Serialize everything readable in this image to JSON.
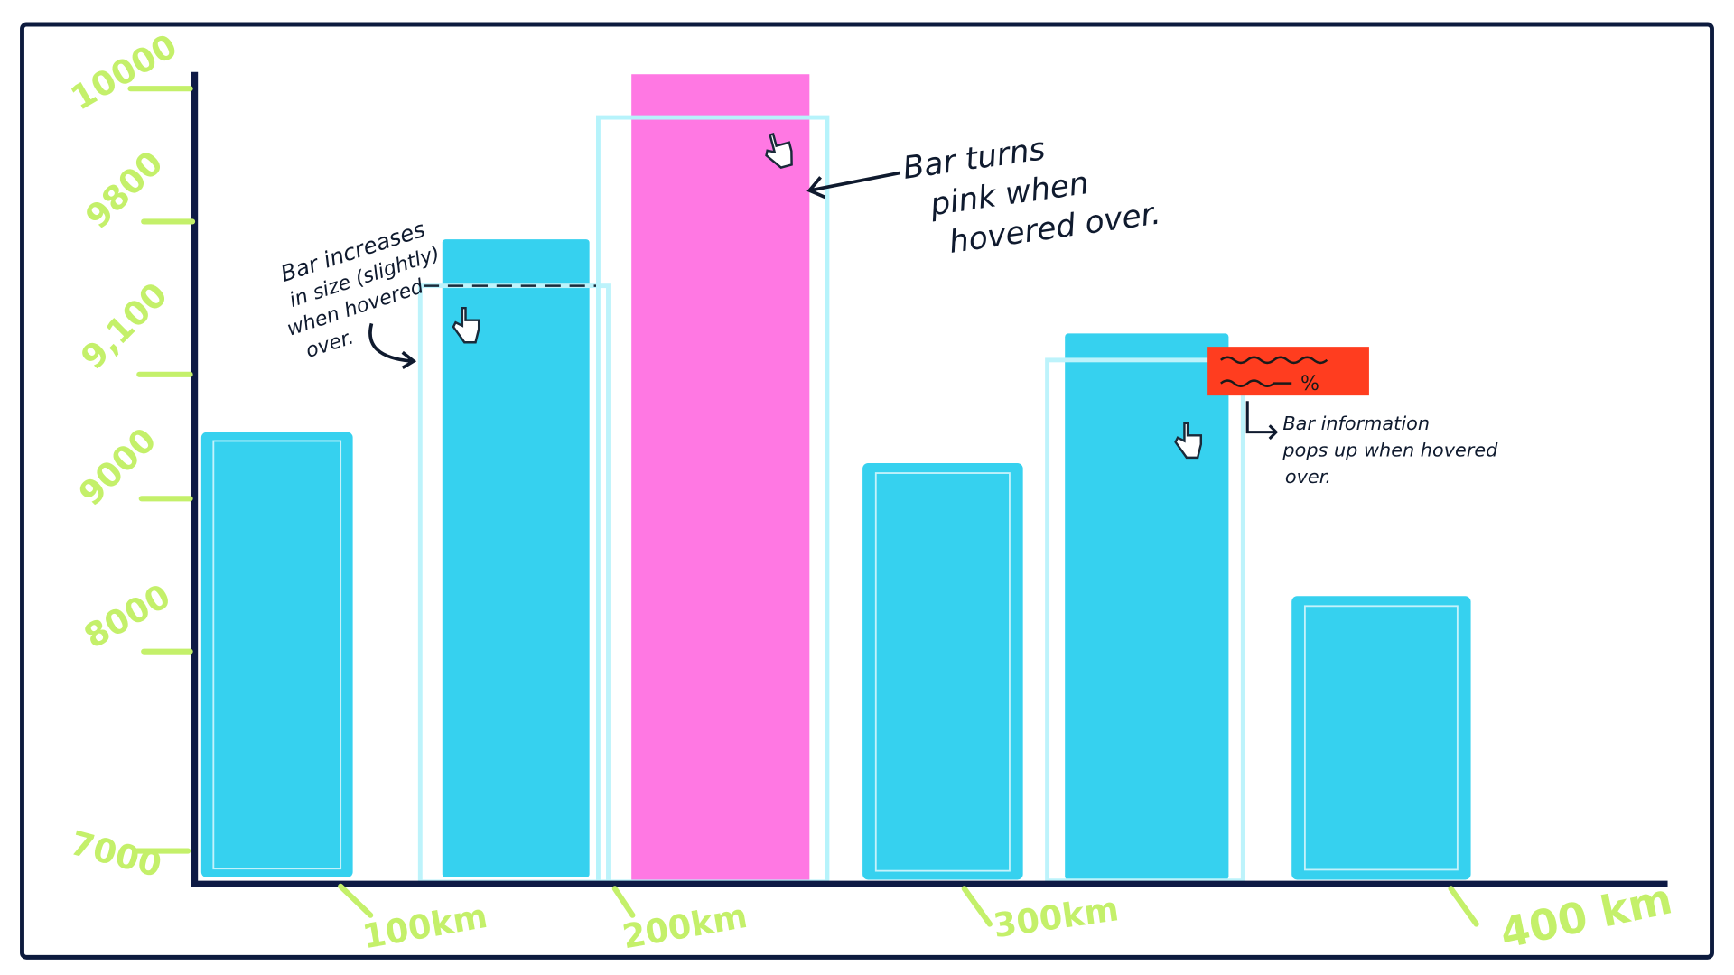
{
  "y_axis": {
    "labels": [
      "10000",
      "9800",
      "9,100",
      "9000",
      "8000",
      "7000"
    ]
  },
  "x_axis": {
    "labels": [
      "100km",
      "200km",
      "300km",
      "400 km"
    ]
  },
  "annotations": {
    "grow": [
      "Bar increases",
      "in size (slightly)",
      "when hovered",
      "over."
    ],
    "pink": [
      "Bar turns",
      "pink when",
      "hovered over."
    ],
    "popup": [
      "Bar information",
      "pops up when hovered",
      "over."
    ]
  },
  "tooltip": {
    "unit": "%"
  }
}
